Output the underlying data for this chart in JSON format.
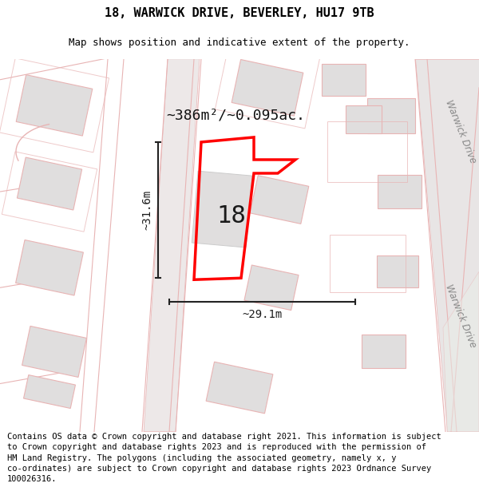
{
  "title": "18, WARWICK DRIVE, BEVERLEY, HU17 9TB",
  "subtitle": "Map shows position and indicative extent of the property.",
  "area_label": "~386m²/~0.095ac.",
  "number_label": "18",
  "width_label": "~29.1m",
  "height_label": "~31.6m",
  "footer": "Contains OS data © Crown copyright and database right 2021. This information is subject\nto Crown copyright and database rights 2023 and is reproduced with the permission of\nHM Land Registry. The polygons (including the associated geometry, namely x, y\nco-ordinates) are subject to Crown copyright and database rights 2023 Ordnance Survey\n100026316.",
  "bg_color": "#f5f0f0",
  "map_bg": "#f5f0f0",
  "plot_color": "#ff0000",
  "light_pink": "#e8b4b4",
  "gray_fill": "#e0dede",
  "white_fill": "#ffffff",
  "title_fontsize": 11,
  "subtitle_fontsize": 9,
  "footer_fontsize": 7.5,
  "warwick_color": "#888888"
}
